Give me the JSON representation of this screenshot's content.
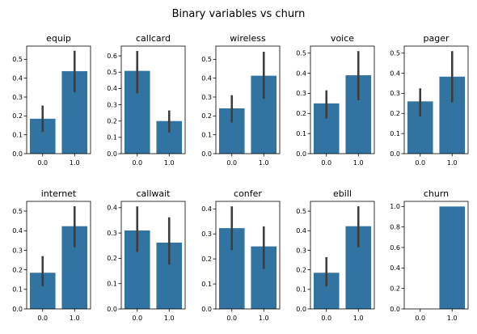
{
  "title": "Binary variables vs churn",
  "colors": {
    "bar": "#3274a1",
    "errorbar": "#3d3d3d",
    "axis": "#000000"
  },
  "chart_data": [
    {
      "type": "bar",
      "title": "equip",
      "categories": [
        "0.0",
        "1.0"
      ],
      "values": [
        0.185,
        0.437
      ],
      "ci": [
        [
          0.115,
          0.255
        ],
        [
          0.325,
          0.545
        ]
      ],
      "ylim": [
        0,
        0.57
      ],
      "yticks": [
        0.0,
        0.1,
        0.2,
        0.3,
        0.4,
        0.5
      ],
      "ytick_labels": [
        "0.0",
        "0.1",
        "0.2",
        "0.3",
        "0.4",
        "0.5"
      ]
    },
    {
      "type": "bar",
      "title": "callcard",
      "categories": [
        "0.0",
        "1.0"
      ],
      "values": [
        0.508,
        0.2
      ],
      "ci": [
        [
          0.37,
          0.63
        ],
        [
          0.13,
          0.265
        ]
      ],
      "ylim": [
        0,
        0.66
      ],
      "yticks": [
        0.0,
        0.1,
        0.2,
        0.3,
        0.4,
        0.5,
        0.6
      ],
      "ytick_labels": [
        "0.0",
        "0.1",
        "0.2",
        "0.3",
        "0.4",
        "0.5",
        "0.6"
      ]
    },
    {
      "type": "bar",
      "title": "wireless",
      "categories": [
        "0.0",
        "1.0"
      ],
      "values": [
        0.24,
        0.413
      ],
      "ci": [
        [
          0.165,
          0.31
        ],
        [
          0.29,
          0.54
        ]
      ],
      "ylim": [
        0,
        0.57
      ],
      "yticks": [
        0.0,
        0.1,
        0.2,
        0.3,
        0.4,
        0.5
      ],
      "ytick_labels": [
        "0.0",
        "0.1",
        "0.2",
        "0.3",
        "0.4",
        "0.5"
      ]
    },
    {
      "type": "bar",
      "title": "voice",
      "categories": [
        "0.0",
        "1.0"
      ],
      "values": [
        0.25,
        0.39
      ],
      "ci": [
        [
          0.175,
          0.315
        ],
        [
          0.265,
          0.51
        ]
      ],
      "ylim": [
        0,
        0.535
      ],
      "yticks": [
        0.0,
        0.1,
        0.2,
        0.3,
        0.4,
        0.5
      ],
      "ytick_labels": [
        "0.0",
        "0.1",
        "0.2",
        "0.3",
        "0.4",
        "0.5"
      ]
    },
    {
      "type": "bar",
      "title": "pager",
      "categories": [
        "0.0",
        "1.0"
      ],
      "values": [
        0.26,
        0.383
      ],
      "ci": [
        [
          0.185,
          0.325
        ],
        [
          0.255,
          0.51
        ]
      ],
      "ylim": [
        0,
        0.535
      ],
      "yticks": [
        0.0,
        0.1,
        0.2,
        0.3,
        0.4,
        0.5
      ],
      "ytick_labels": [
        "0.0",
        "0.1",
        "0.2",
        "0.3",
        "0.4",
        "0.5"
      ]
    },
    {
      "type": "bar",
      "title": "internet",
      "categories": [
        "0.0",
        "1.0"
      ],
      "values": [
        0.185,
        0.423
      ],
      "ci": [
        [
          0.115,
          0.27
        ],
        [
          0.315,
          0.525
        ]
      ],
      "ylim": [
        0,
        0.55
      ],
      "yticks": [
        0.0,
        0.1,
        0.2,
        0.3,
        0.4,
        0.5
      ],
      "ytick_labels": [
        "0.0",
        "0.1",
        "0.2",
        "0.3",
        "0.4",
        "0.5"
      ]
    },
    {
      "type": "bar",
      "title": "callwait",
      "categories": [
        "0.0",
        "1.0"
      ],
      "values": [
        0.31,
        0.262
      ],
      "ci": [
        [
          0.225,
          0.405
        ],
        [
          0.175,
          0.362
        ]
      ],
      "ylim": [
        0,
        0.425
      ],
      "yticks": [
        0.0,
        0.1,
        0.2,
        0.3,
        0.4
      ],
      "ytick_labels": [
        "0.0",
        "0.1",
        "0.2",
        "0.3",
        "0.4"
      ]
    },
    {
      "type": "bar",
      "title": "confer",
      "categories": [
        "0.0",
        "1.0"
      ],
      "values": [
        0.323,
        0.25
      ],
      "ci": [
        [
          0.235,
          0.41
        ],
        [
          0.16,
          0.33
        ]
      ],
      "ylim": [
        0,
        0.43
      ],
      "yticks": [
        0.0,
        0.1,
        0.2,
        0.3,
        0.4
      ],
      "ytick_labels": [
        "0.0",
        "0.1",
        "0.2",
        "0.3",
        "0.4"
      ]
    },
    {
      "type": "bar",
      "title": "ebill",
      "categories": [
        "0.0",
        "1.0"
      ],
      "values": [
        0.185,
        0.423
      ],
      "ci": [
        [
          0.115,
          0.265
        ],
        [
          0.315,
          0.525
        ]
      ],
      "ylim": [
        0,
        0.55
      ],
      "yticks": [
        0.0,
        0.1,
        0.2,
        0.3,
        0.4,
        0.5
      ],
      "ytick_labels": [
        "0.0",
        "0.1",
        "0.2",
        "0.3",
        "0.4",
        "0.5"
      ]
    },
    {
      "type": "bar",
      "title": "churn",
      "categories": [
        "0.0",
        "1.0"
      ],
      "values": [
        0.0,
        1.0
      ],
      "ci": [
        [
          0.0,
          0.0
        ],
        [
          1.0,
          1.0
        ]
      ],
      "ylim": [
        0,
        1.05
      ],
      "yticks": [
        0.0,
        0.2,
        0.4,
        0.6,
        0.8,
        1.0
      ],
      "ytick_labels": [
        "0.0",
        "0.2",
        "0.4",
        "0.6",
        "0.8",
        "1.0"
      ]
    }
  ]
}
